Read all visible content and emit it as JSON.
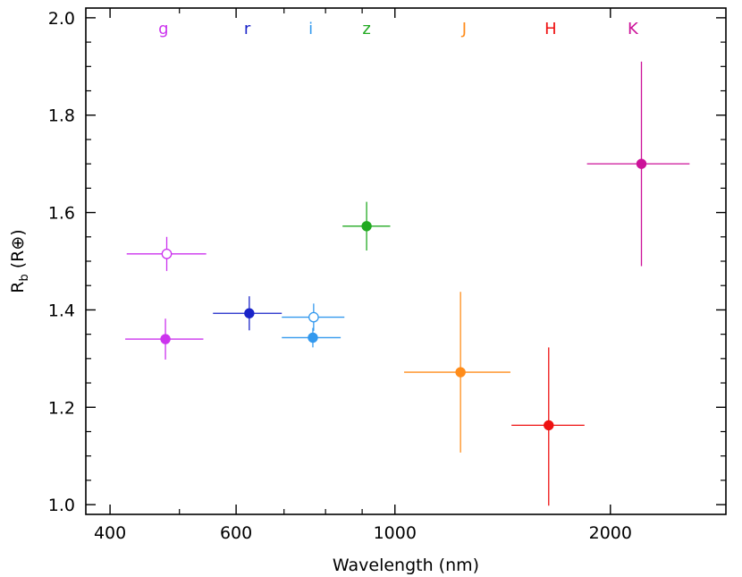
{
  "chart_data": {
    "type": "scatter",
    "x_scale": "log",
    "xlabel": "Wavelength (nm)",
    "ylabel": {
      "main": "R",
      "sub": "b",
      "unit": "(R⊕)"
    },
    "xlim": [
      370,
      2900
    ],
    "ylim": [
      0.98,
      2.02
    ],
    "x_ticks": [
      {
        "value": 400,
        "label": "400"
      },
      {
        "value": 600,
        "label": "600"
      },
      {
        "value": 1000,
        "label": "1000"
      },
      {
        "value": 2000,
        "label": "2000"
      }
    ],
    "x_minor_ticks": [
      500,
      700,
      800,
      900
    ],
    "y_ticks": [
      {
        "value": 1.0,
        "label": "1.0"
      },
      {
        "value": 1.2,
        "label": "1.2"
      },
      {
        "value": 1.4,
        "label": "1.4"
      },
      {
        "value": 1.6,
        "label": "1.6"
      },
      {
        "value": 1.8,
        "label": "1.8"
      },
      {
        "value": 2.0,
        "label": "2.0"
      }
    ],
    "y_minor_step": 0.05,
    "bands": [
      {
        "name": "g",
        "x": 475,
        "color": "#cc33ee"
      },
      {
        "name": "r",
        "x": 622,
        "color": "#1a24c8"
      },
      {
        "name": "i",
        "x": 763,
        "color": "#3399ee"
      },
      {
        "name": "z",
        "x": 913,
        "color": "#22aa22"
      },
      {
        "name": "J",
        "x": 1250,
        "color": "#ff8c1a"
      },
      {
        "name": "H",
        "x": 1650,
        "color": "#ee1111"
      },
      {
        "name": "K",
        "x": 2150,
        "color": "#cc1199"
      }
    ],
    "series": [
      {
        "band": "g",
        "filled": false,
        "x": 480,
        "xmin": 422,
        "xmax": 545,
        "y": 1.515,
        "yerr_lo": 0.035,
        "yerr_hi": 0.035,
        "color": "#cc33ee"
      },
      {
        "band": "g",
        "filled": true,
        "x": 478,
        "xmin": 420,
        "xmax": 540,
        "y": 1.34,
        "yerr_lo": 0.042,
        "yerr_hi": 0.042,
        "color": "#cc33ee"
      },
      {
        "band": "r",
        "filled": true,
        "x": 626,
        "xmin": 557,
        "xmax": 695,
        "y": 1.393,
        "yerr_lo": 0.035,
        "yerr_hi": 0.035,
        "color": "#1a24c8"
      },
      {
        "band": "i",
        "filled": false,
        "x": 770,
        "xmin": 695,
        "xmax": 850,
        "y": 1.385,
        "yerr_lo": 0.028,
        "yerr_hi": 0.028,
        "color": "#3399ee"
      },
      {
        "band": "i",
        "filled": true,
        "x": 768,
        "xmin": 695,
        "xmax": 840,
        "y": 1.343,
        "yerr_lo": 0.02,
        "yerr_hi": 0.02,
        "color": "#3399ee"
      },
      {
        "band": "z",
        "filled": true,
        "x": 913,
        "xmin": 845,
        "xmax": 985,
        "y": 1.572,
        "yerr_lo": 0.05,
        "yerr_hi": 0.05,
        "color": "#22aa22"
      },
      {
        "band": "J",
        "filled": true,
        "x": 1235,
        "xmin": 1030,
        "xmax": 1450,
        "y": 1.272,
        "yerr_lo": 0.165,
        "yerr_hi": 0.165,
        "color": "#ff8c1a"
      },
      {
        "band": "H",
        "filled": true,
        "x": 1640,
        "xmin": 1455,
        "xmax": 1840,
        "y": 1.163,
        "yerr_lo": 0.165,
        "yerr_hi": 0.16,
        "color": "#ee1111"
      },
      {
        "band": "K",
        "filled": true,
        "x": 2210,
        "xmin": 1855,
        "xmax": 2580,
        "y": 1.7,
        "yerr_lo": 0.21,
        "yerr_hi": 0.21,
        "color": "#cc1199"
      }
    ]
  }
}
